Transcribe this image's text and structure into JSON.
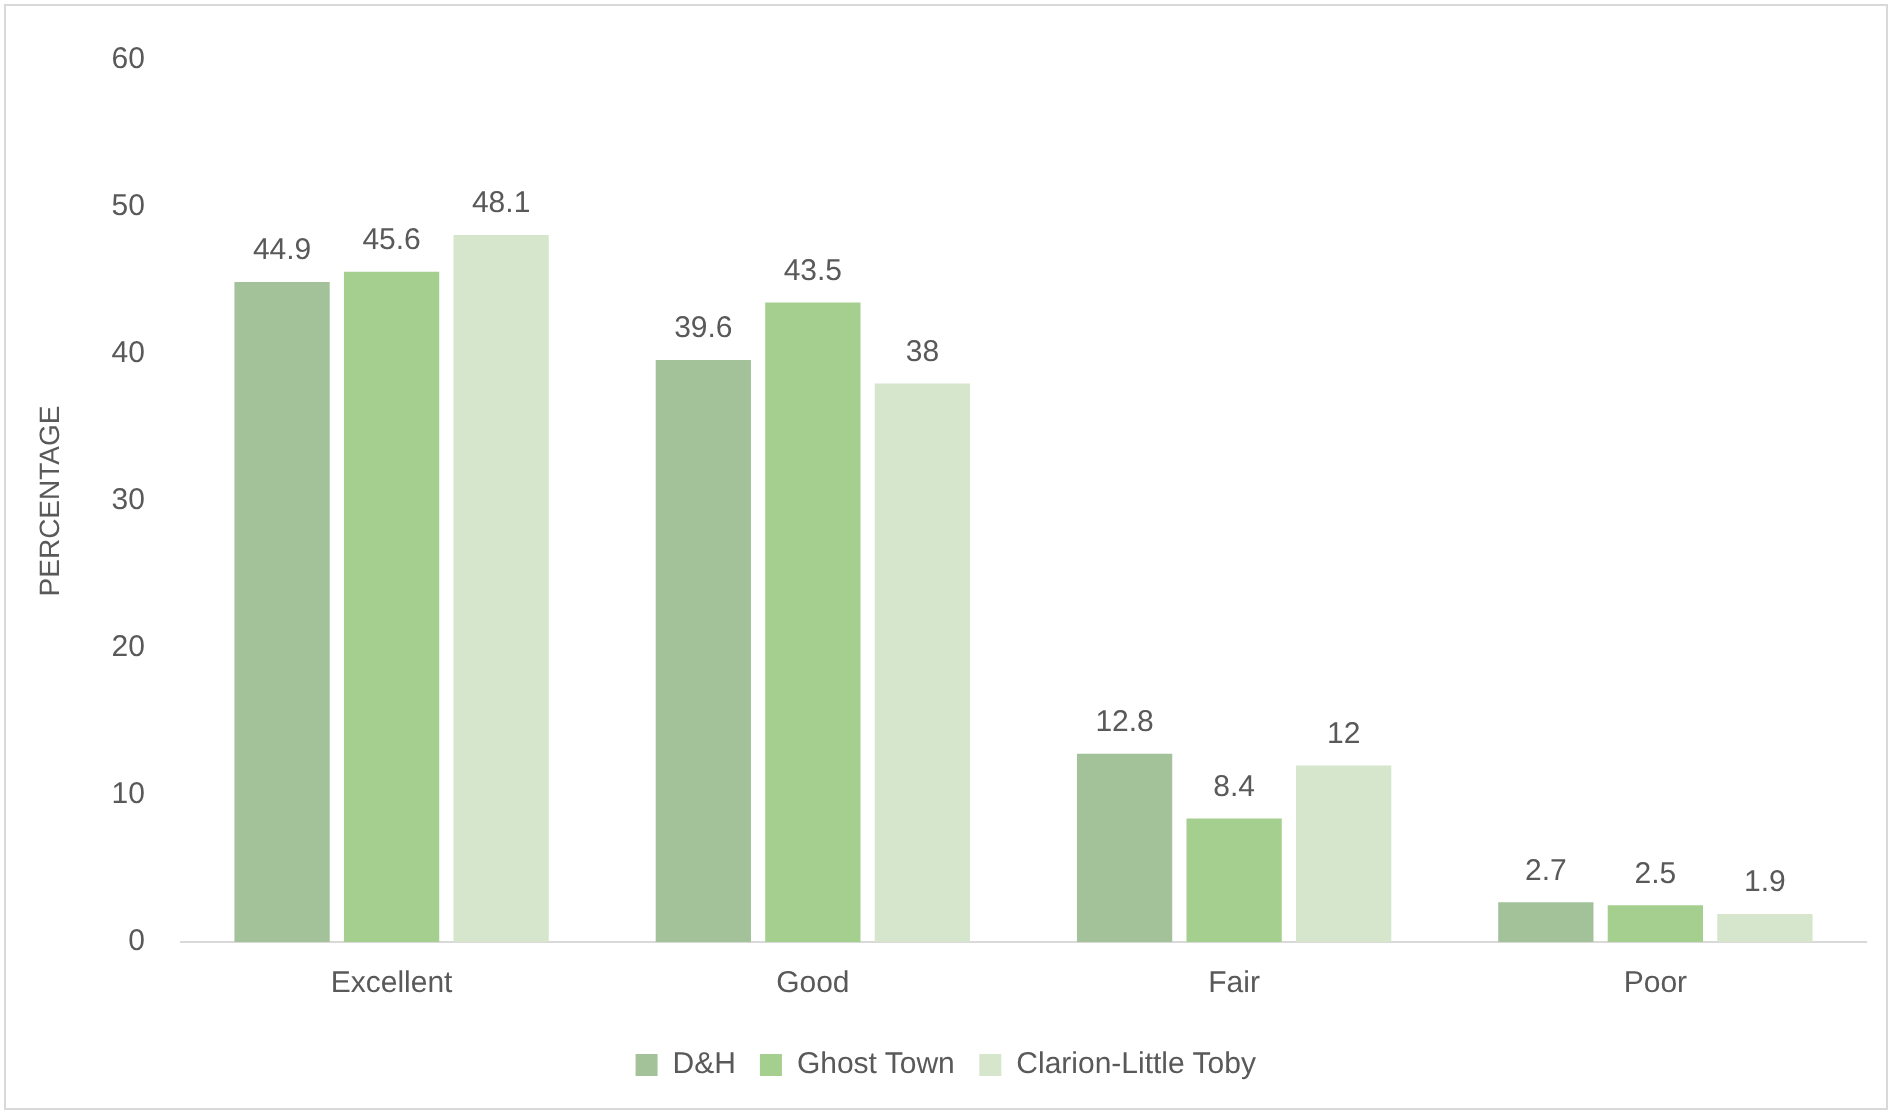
{
  "chart_data": {
    "type": "bar",
    "ylabel": "PERCENTAGE",
    "categories": [
      "Excellent",
      "Good",
      "Fair",
      "Poor"
    ],
    "series": [
      {
        "name": "D&H",
        "color": "#a3c29a",
        "values": [
          44.9,
          39.6,
          12.8,
          2.7
        ]
      },
      {
        "name": "Ghost Town",
        "color": "#a4cf8f",
        "values": [
          45.6,
          43.5,
          8.4,
          2.5
        ]
      },
      {
        "name": "Clarion-Little Toby",
        "color": "#d5e6cd",
        "values": [
          48.1,
          38,
          12,
          1.9
        ]
      }
    ],
    "ylim": [
      0,
      60
    ],
    "yticks": [
      0,
      10,
      20,
      30,
      40,
      50,
      60
    ],
    "grid": false,
    "legend": "bottom",
    "data_labels": true
  }
}
